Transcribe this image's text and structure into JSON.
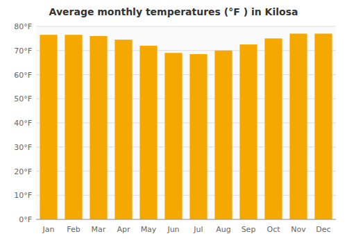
{
  "chart_data": {
    "type": "bar",
    "title": "Average monthly temperatures (°F ) in Kilosa",
    "categories": [
      "Jan",
      "Feb",
      "Mar",
      "Apr",
      "May",
      "Jun",
      "Jul",
      "Aug",
      "Sep",
      "Oct",
      "Nov",
      "Dec"
    ],
    "values": [
      76.5,
      76.5,
      76.0,
      74.5,
      72.0,
      69.0,
      68.5,
      70.0,
      72.5,
      75.0,
      77.0,
      77.0
    ],
    "color": "#F5A800",
    "ylim": [
      0,
      80
    ],
    "yticks": [
      {
        "value": 0,
        "label": "0°F"
      },
      {
        "value": 10,
        "label": "10°F"
      },
      {
        "value": 20,
        "label": "20°F"
      },
      {
        "value": 30,
        "label": "30°F"
      },
      {
        "value": 40,
        "label": "40°F"
      },
      {
        "value": 50,
        "label": "50°F"
      },
      {
        "value": 60,
        "label": "60°F"
      },
      {
        "value": 70,
        "label": "70°F"
      },
      {
        "value": 80,
        "label": "80°F"
      }
    ],
    "grid": true
  }
}
